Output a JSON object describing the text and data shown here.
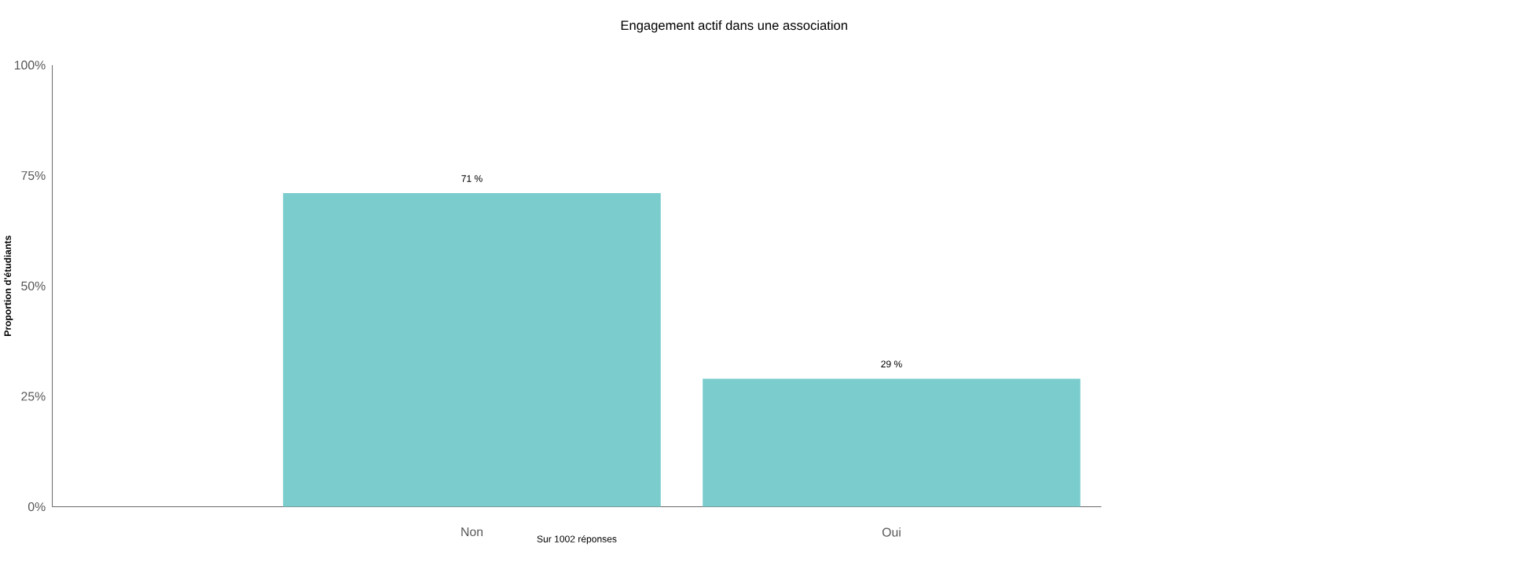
{
  "chart_data": {
    "type": "bar",
    "title": "Engagement actif dans une association",
    "xlabel": "Sur 1002  réponses",
    "ylabel": "Proportion d'étudiants",
    "categories": [
      "Non",
      "Oui"
    ],
    "values": [
      71,
      29
    ],
    "color": "#7bcdcd",
    "value_labels": [
      "71 %",
      "29 %"
    ],
    "ylim": [
      0,
      100
    ],
    "yticks": [
      {
        "value": 0,
        "label": "0%"
      },
      {
        "value": 25,
        "label": "25%"
      },
      {
        "value": 50,
        "label": "50%"
      },
      {
        "value": 75,
        "label": "75%"
      },
      {
        "value": 100,
        "label": "100%"
      }
    ],
    "grid": false
  }
}
